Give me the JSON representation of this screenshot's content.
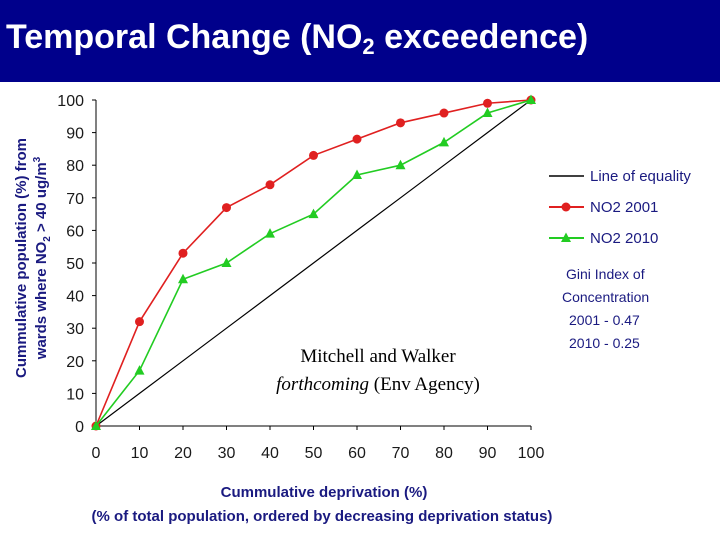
{
  "slide": {
    "title_main": "Temporal Change (NO",
    "title_sub": "2",
    "title_tail": " exceedence)",
    "colors": {
      "title_band": "#00008b",
      "title_text": "#ffffff"
    }
  },
  "chart_data": {
    "type": "line",
    "title": "",
    "ylabel_line1": "Cummulative population (%) from",
    "ylabel_line2_a": "wards where NO",
    "ylabel_line2_sub": "2",
    "ylabel_line2_b": " > 40 ug/m",
    "ylabel_line2_sup": "3",
    "xlabel": "Cummulative deprivation (%)",
    "xlabel_sub": "(% of total population, ordered by decreasing deprivation status)",
    "x": [
      0,
      10,
      20,
      30,
      40,
      50,
      60,
      70,
      80,
      90,
      100
    ],
    "xlim": [
      0,
      100
    ],
    "ylim": [
      0,
      100
    ],
    "xticks": [
      "0",
      "10",
      "20",
      "30",
      "40",
      "50",
      "60",
      "70",
      "80",
      "90",
      "100"
    ],
    "yticks": [
      "0",
      "10",
      "20",
      "30",
      "40",
      "50",
      "60",
      "70",
      "80",
      "90",
      "100"
    ],
    "grid": false,
    "legend_position": "right",
    "series": [
      {
        "name": "Line of equality",
        "values": [
          0,
          10,
          20,
          30,
          40,
          50,
          60,
          70,
          80,
          90,
          100
        ],
        "color": "#000000",
        "marker": "none"
      },
      {
        "name": "NO2 2001",
        "values": [
          0,
          32,
          53,
          67,
          74,
          83,
          88,
          93,
          96,
          99,
          100
        ],
        "color": "#e02020",
        "marker": "circle"
      },
      {
        "name": "NO2 2010",
        "values": [
          0,
          17,
          45,
          50,
          59,
          65,
          77,
          80,
          87,
          96,
          100
        ],
        "color": "#22cc22",
        "marker": "triangle"
      }
    ],
    "gini_title_1": "Gini Index of",
    "gini_title_2": "Concentration",
    "gini_2001": "2001 - 0.47",
    "gini_2010": "2010 - 0.25",
    "annotation_1": "Mitchell and Walker",
    "annotation_2_italic": "forthcoming",
    "annotation_2_rest": " (Env Agency)"
  }
}
